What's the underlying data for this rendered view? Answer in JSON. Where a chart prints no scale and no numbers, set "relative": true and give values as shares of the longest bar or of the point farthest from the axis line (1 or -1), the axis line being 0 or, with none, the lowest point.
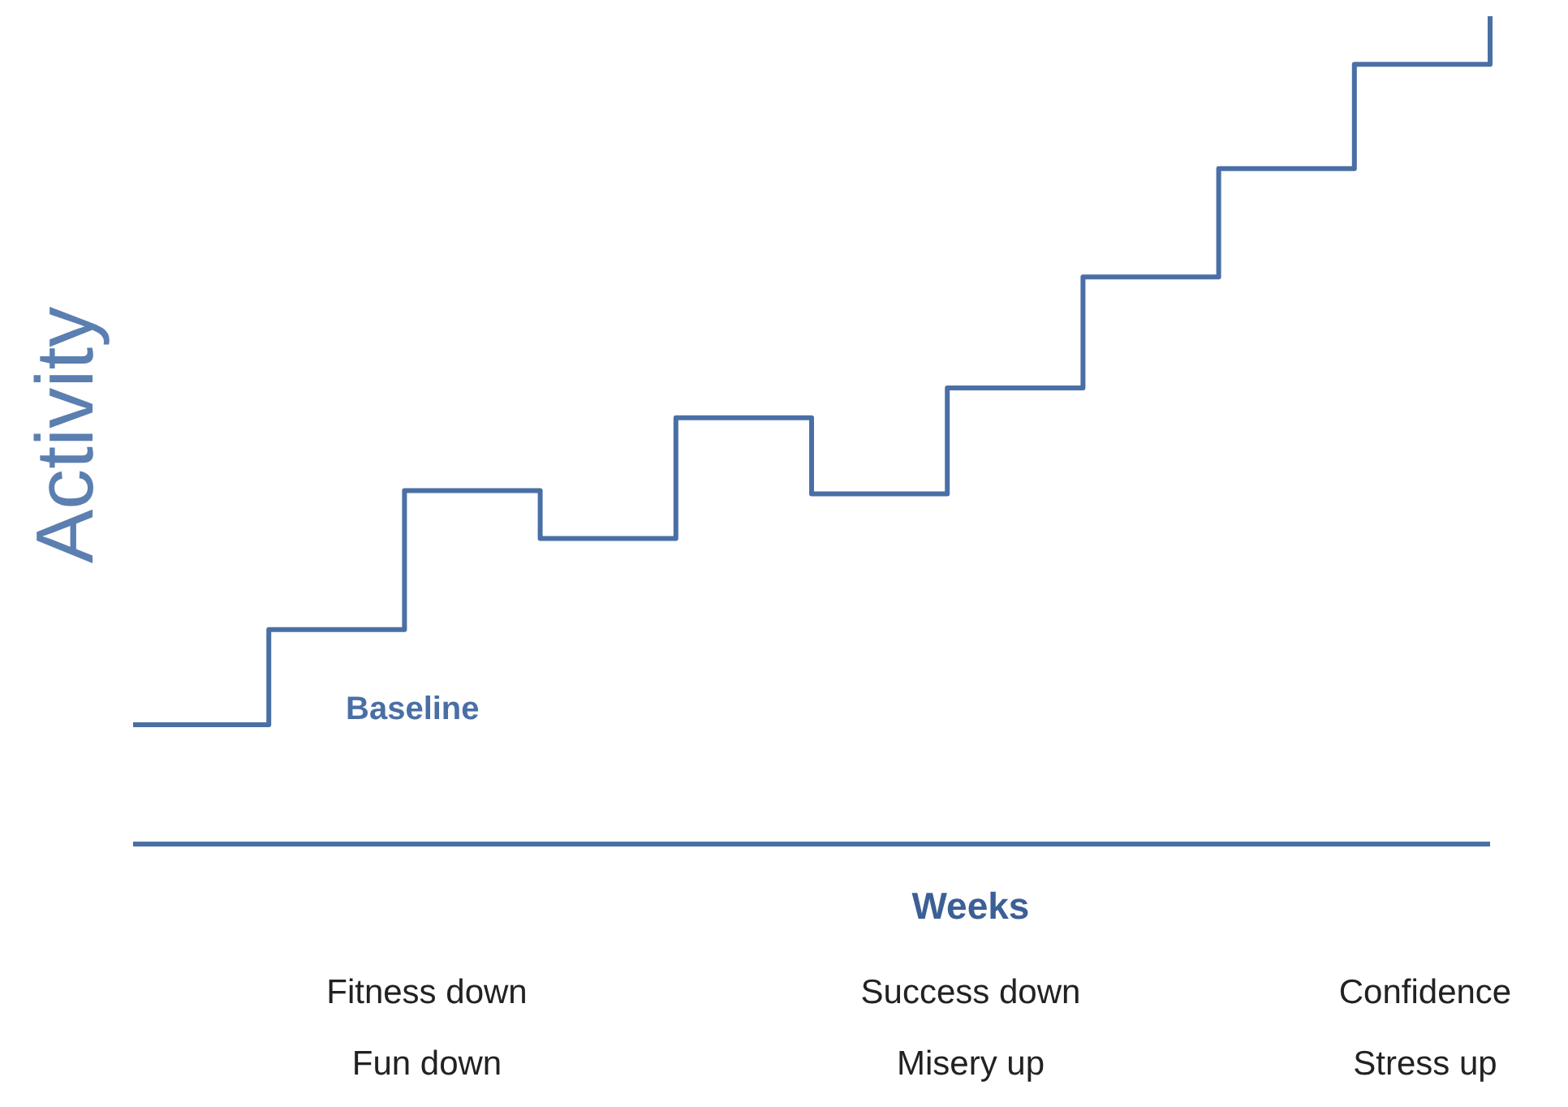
{
  "chart_data": {
    "type": "step",
    "relative": true,
    "ylabel": "Activity",
    "xlabel": "Weeks",
    "categories": [
      null,
      null,
      null,
      null,
      null,
      null,
      null,
      null,
      null,
      null,
      null
    ],
    "series": [
      {
        "color": "#4a6fa5",
        "values": [
          0.144,
          0.259,
          0.427,
          0.369,
          0.515,
          0.423,
          0.551,
          0.685,
          0.816,
          0.942,
          1
        ]
      }
    ],
    "annotations": [
      "Baseline",
      "Fitness down",
      "Fun down",
      "Success down",
      "Misery up",
      "Confidence",
      "Stress up"
    ],
    "grid": false,
    "legend": false,
    "marker": "none",
    "line_style": "solid"
  }
}
